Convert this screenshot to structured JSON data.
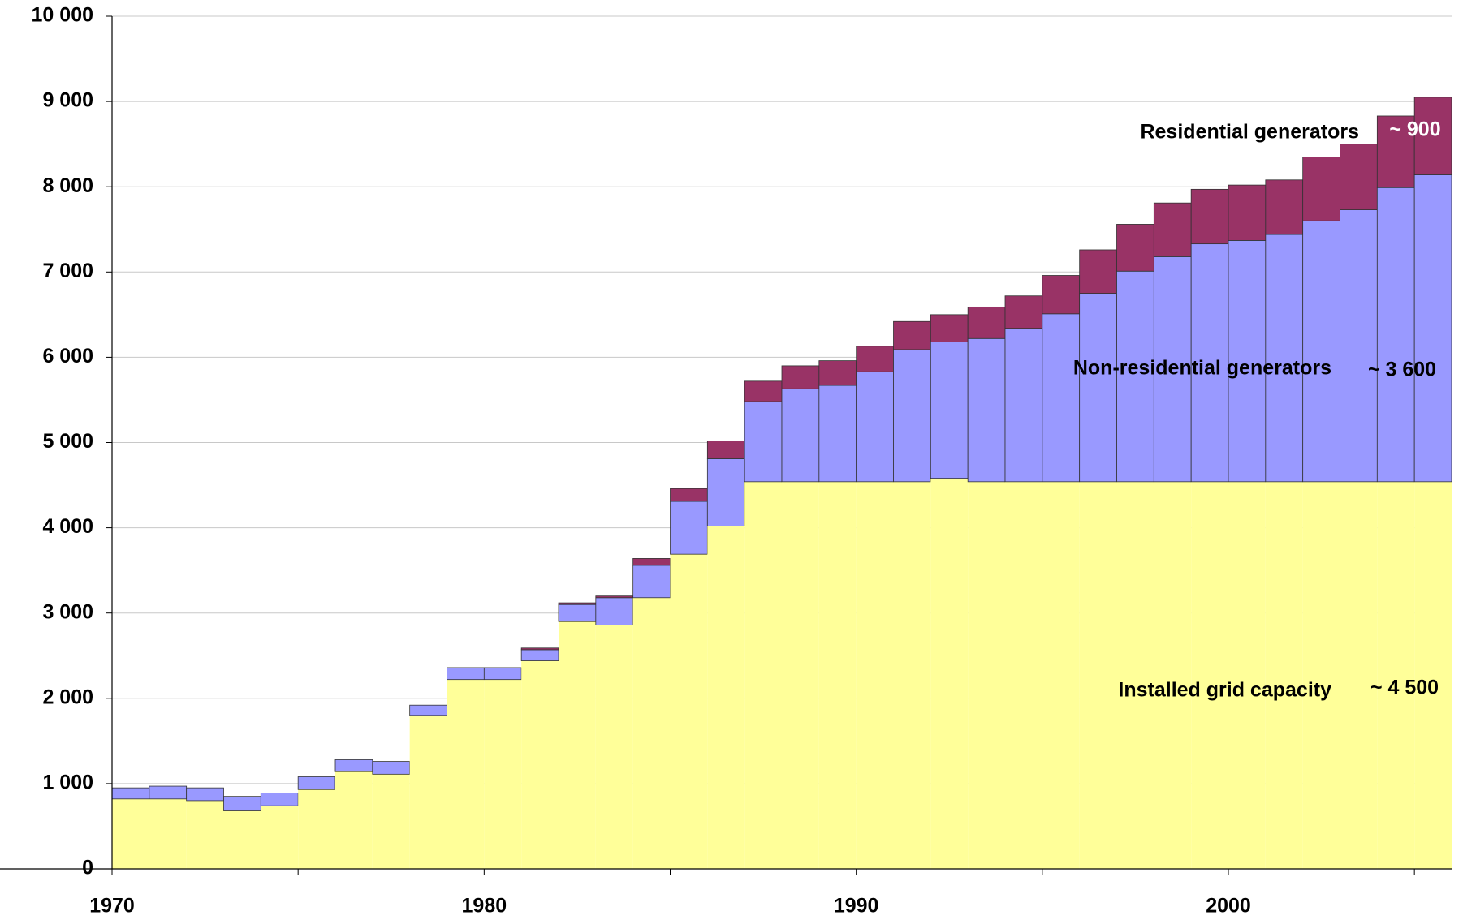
{
  "chart_data": {
    "type": "stacked-bar",
    "x": [
      1970,
      1971,
      1972,
      1973,
      1974,
      1975,
      1976,
      1977,
      1978,
      1979,
      1980,
      1981,
      1982,
      1983,
      1984,
      1985,
      1986,
      1987,
      1988,
      1989,
      1990,
      1991,
      1992,
      1993,
      1994,
      1995,
      1996,
      1997,
      1998,
      1999,
      2000,
      2001,
      2002,
      2003,
      2004,
      2005
    ],
    "xlim": [
      1970,
      2006
    ],
    "xticks": [
      1970,
      1980,
      1990,
      2000
    ],
    "ylim": [
      0,
      10000
    ],
    "yticks": [
      {
        "value": 0,
        "label": "0"
      },
      {
        "value": 1000,
        "label": "1 000"
      },
      {
        "value": 2000,
        "label": "2 000"
      },
      {
        "value": 3000,
        "label": "3 000"
      },
      {
        "value": 4000,
        "label": "4 000"
      },
      {
        "value": 5000,
        "label": "5 000"
      },
      {
        "value": 6000,
        "label": "6 000"
      },
      {
        "value": 7000,
        "label": "7 000"
      },
      {
        "value": 8000,
        "label": "8 000"
      },
      {
        "value": 9000,
        "label": "9 000"
      },
      {
        "value": 10000,
        "label": "10 000"
      }
    ],
    "grid": true,
    "series": [
      {
        "name": "Installed grid capacity",
        "color": "#ffff99",
        "values": [
          820,
          820,
          800,
          680,
          740,
          930,
          1140,
          1110,
          1800,
          2220,
          2220,
          2440,
          2900,
          2860,
          3180,
          3690,
          4020,
          4540,
          4540,
          4540,
          4540,
          4540,
          4580,
          4540,
          4540,
          4540,
          4540,
          4540,
          4540,
          4540,
          4540,
          4540,
          4540,
          4540,
          4540,
          4540
        ]
      },
      {
        "name": "Non-residential generators",
        "color": "#9999ff",
        "values": [
          130,
          150,
          150,
          170,
          150,
          150,
          140,
          150,
          120,
          140,
          140,
          130,
          200,
          320,
          380,
          620,
          790,
          940,
          1090,
          1130,
          1290,
          1550,
          1600,
          1680,
          1800,
          1970,
          2210,
          2470,
          2640,
          2790,
          2830,
          2900,
          3060,
          3190,
          3450,
          3600
        ]
      },
      {
        "name": "Residential generators",
        "color": "#993366",
        "values": [
          0,
          0,
          0,
          0,
          0,
          0,
          0,
          0,
          0,
          0,
          0,
          20,
          20,
          20,
          80,
          150,
          210,
          240,
          270,
          290,
          300,
          330,
          320,
          370,
          380,
          450,
          510,
          550,
          630,
          640,
          650,
          640,
          750,
          770,
          840,
          910
        ]
      }
    ],
    "annotations": [
      "~ 4 500",
      "~ 3 600",
      "~ 900"
    ]
  }
}
